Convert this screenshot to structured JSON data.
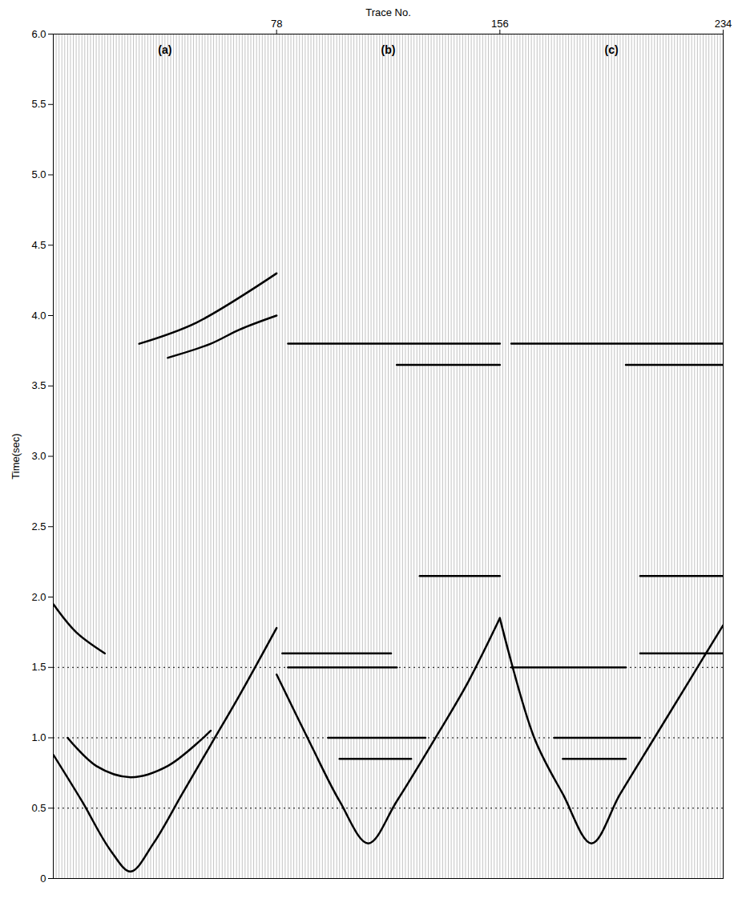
{
  "chart_data": {
    "type": "seismic",
    "x_label": "Trace No.",
    "y_label": "Time(sec)",
    "xlim": [
      0,
      234
    ],
    "xticks": [
      78,
      156,
      234
    ],
    "ylim": [
      0,
      6
    ],
    "yticks": [
      0,
      0.5,
      {
        "value": 1,
        "label": "1.0"
      },
      1.5,
      {
        "value": 2,
        "label": "2.0"
      },
      2.5,
      {
        "value": 3,
        "label": "3.0"
      },
      3.5,
      {
        "value": 4,
        "label": "4.0"
      },
      4.5,
      {
        "value": 5,
        "label": "5.0"
      },
      5.5,
      {
        "value": 6,
        "label": "6.0"
      }
    ],
    "grid_lines": [
      0.5,
      1,
      1.5
    ],
    "color": "#000000",
    "annotations": [
      {
        "text": "(a)",
        "x": 39
      },
      {
        "text": "(b)",
        "x": 117
      },
      {
        "text": "(c)",
        "x": 195
      }
    ],
    "series": [
      {
        "x": [
          0,
          10,
          20,
          27,
          35,
          45,
          55,
          65,
          78
        ],
        "values": [
          0.88,
          0.55,
          0.2,
          0.05,
          0.25,
          0.6,
          0.95,
          1.3,
          1.78
        ]
      },
      {
        "x": [
          5,
          15,
          27,
          40,
          55
        ],
        "values": [
          1.0,
          0.8,
          0.72,
          0.8,
          1.05
        ]
      },
      {
        "x": [
          0,
          8,
          18
        ],
        "values": [
          1.95,
          1.75,
          1.6
        ]
      },
      {
        "x": [
          40,
          55,
          65,
          78
        ],
        "values": [
          3.7,
          3.8,
          3.9,
          4.0
        ]
      },
      {
        "x": [
          30,
          50,
          78
        ],
        "values": [
          3.8,
          3.95,
          4.3
        ]
      },
      {
        "x": [
          78,
          90,
          100,
          110,
          120,
          135,
          145,
          156
        ],
        "values": [
          1.45,
          0.95,
          0.55,
          0.25,
          0.55,
          1.05,
          1.4,
          1.85
        ]
      },
      {
        "x": [
          100,
          125
        ],
        "values": [
          0.85,
          0.85
        ]
      },
      {
        "x": [
          96,
          130
        ],
        "values": [
          1.0,
          1.0
        ]
      },
      {
        "x": [
          82,
          120
        ],
        "values": [
          1.5,
          1.5
        ]
      },
      {
        "x": [
          80,
          118
        ],
        "values": [
          1.6,
          1.6
        ]
      },
      {
        "x": [
          128,
          156
        ],
        "values": [
          2.15,
          2.15
        ]
      },
      {
        "x": [
          120,
          156
        ],
        "values": [
          3.65,
          3.65
        ]
      },
      {
        "x": [
          82,
          156
        ],
        "values": [
          3.8,
          3.8
        ]
      },
      {
        "x": [
          156,
          168,
          178,
          188,
          198,
          210,
          222,
          234
        ],
        "values": [
          1.85,
          1.0,
          0.6,
          0.25,
          0.6,
          1.0,
          1.4,
          1.8
        ]
      },
      {
        "x": [
          178,
          200
        ],
        "values": [
          0.85,
          0.85
        ]
      },
      {
        "x": [
          175,
          205
        ],
        "values": [
          1.0,
          1.0
        ]
      },
      {
        "x": [
          160,
          200
        ],
        "values": [
          1.5,
          1.5
        ]
      },
      {
        "x": [
          205,
          234
        ],
        "values": [
          1.6,
          1.6
        ]
      },
      {
        "x": [
          205,
          234
        ],
        "values": [
          2.15,
          2.15
        ]
      },
      {
        "x": [
          200,
          234
        ],
        "values": [
          3.65,
          3.65
        ]
      },
      {
        "x": [
          160,
          234
        ],
        "values": [
          3.8,
          3.8
        ]
      }
    ]
  }
}
